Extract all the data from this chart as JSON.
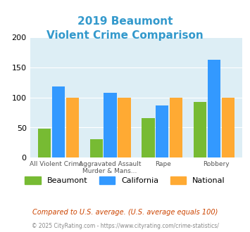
{
  "title_line1": "2019 Beaumont",
  "title_line2": "Violent Crime Comparison",
  "title_color": "#3399cc",
  "categories": [
    "All Violent Crime",
    "Aggravated Assault\nMurder & Mans...",
    "Rape",
    "Robbery"
  ],
  "cat_labels_top": [
    "All Violent Crime",
    "Aggravated Assault",
    "Rape",
    "Robbery"
  ],
  "cat_labels_bot": [
    "",
    "Murder & Mans...",
    "",
    ""
  ],
  "beaumont": [
    48,
    31,
    66,
    93
  ],
  "california": [
    118,
    108,
    87,
    162
  ],
  "national": [
    100,
    100,
    100,
    100
  ],
  "beaumont_color": "#77bb33",
  "california_color": "#3399ff",
  "national_color": "#ffaa33",
  "ylim": [
    0,
    200
  ],
  "yticks": [
    0,
    50,
    100,
    150,
    200
  ],
  "background_color": "#ddeef5",
  "plot_bg": "#ddeef5",
  "legend_labels": [
    "Beaumont",
    "California",
    "National"
  ],
  "footnote1": "Compared to U.S. average. (U.S. average equals 100)",
  "footnote2": "© 2025 CityRating.com - https://www.cityrating.com/crime-statistics/",
  "footnote1_color": "#cc4400",
  "footnote2_color": "#888888"
}
